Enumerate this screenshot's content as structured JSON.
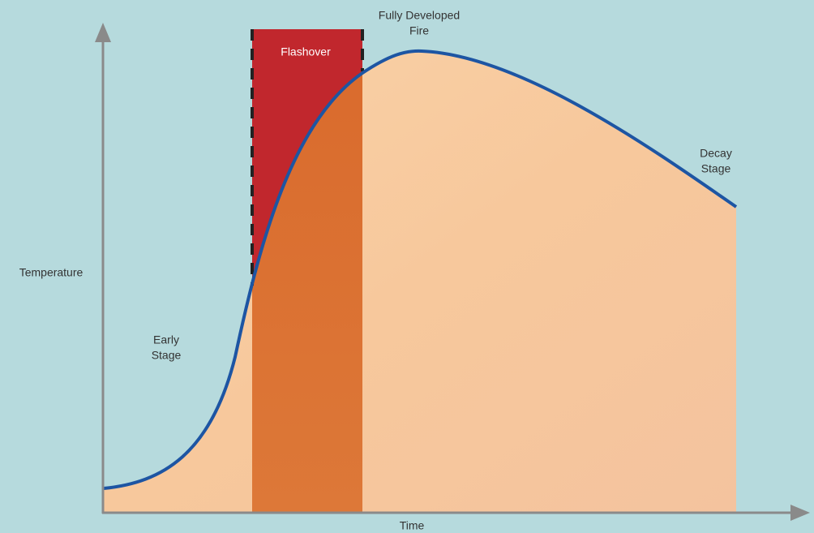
{
  "diagram": {
    "axes": {
      "y_label": "Temperature",
      "x_label": "Time"
    },
    "stages": {
      "early": [
        "Early",
        "Stage"
      ],
      "flashover": [
        "Flashover"
      ],
      "fully_developed": [
        "Fully Developed",
        "Fire"
      ],
      "decay": [
        "Decay",
        "Stage"
      ]
    }
  }
}
